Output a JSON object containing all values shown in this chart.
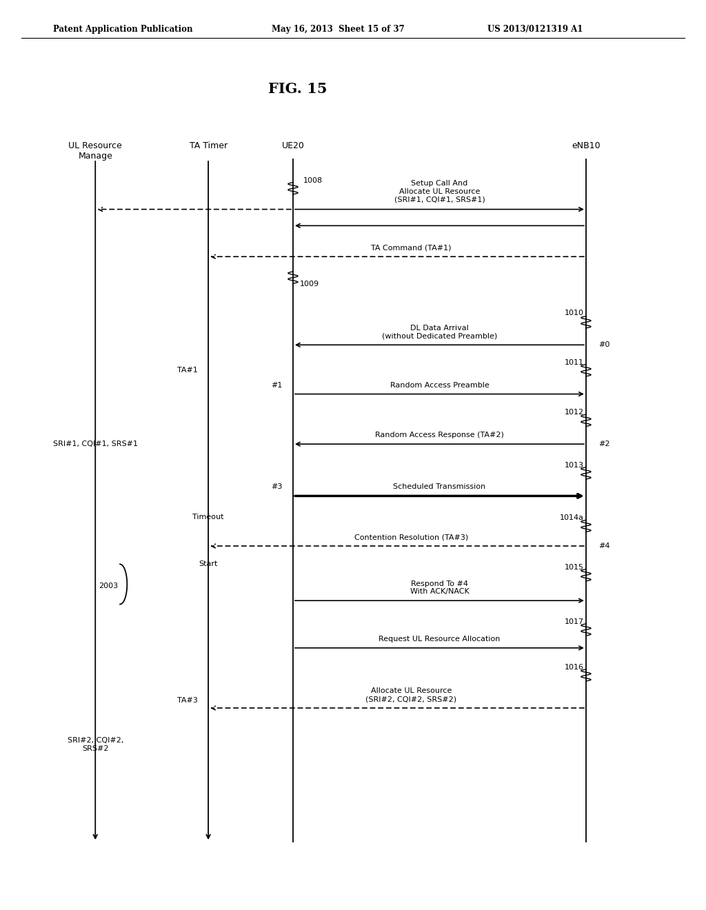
{
  "title": "FIG. 15",
  "header_left": "Patent Application Publication",
  "header_mid": "May 16, 2013  Sheet 15 of 37",
  "header_right": "US 2013/0121319 A1",
  "background_color": "#ffffff",
  "columns": {
    "ul_resource": 0.135,
    "ta_timer": 0.295,
    "ue20": 0.415,
    "enb10": 0.83
  },
  "col_labels": {
    "ul_resource": "UL Resource\nManage",
    "ta_timer": "TA Timer",
    "ue20": "UE20",
    "enb10": "eNB10"
  }
}
